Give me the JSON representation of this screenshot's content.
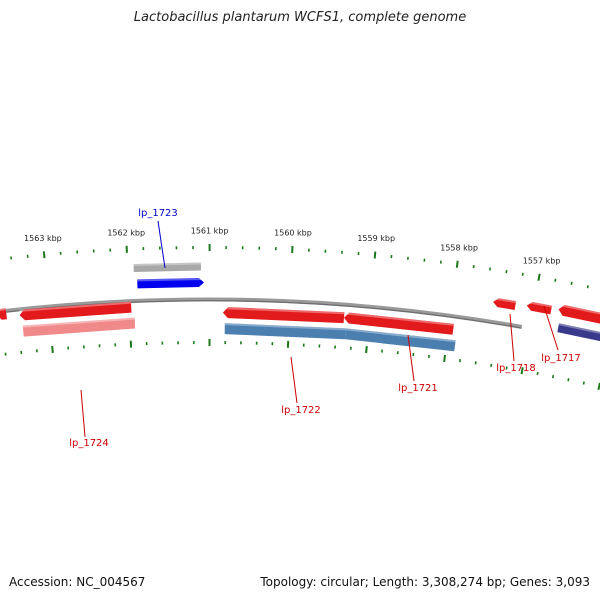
{
  "title": "Lactobacillus plantarum WCFS1, complete genome",
  "footer": {
    "accession": "Accession: NC_004567",
    "summary": "Topology: circular; Length: 3,308,274 bp; Genes: 3,093"
  },
  "scale": {
    "tick_color": "#1a7a1a",
    "labels": [
      {
        "kbp": 1557,
        "text": "1557 kbp"
      },
      {
        "kbp": 1558,
        "text": "1558 kbp"
      },
      {
        "kbp": 1559,
        "text": "1559 kbp"
      },
      {
        "kbp": 1560,
        "text": "1560 kbp"
      },
      {
        "kbp": 1561,
        "text": "1561 kbp"
      },
      {
        "kbp": 1562,
        "text": "1562 kbp"
      },
      {
        "kbp": 1563,
        "text": "1563 kbp"
      }
    ]
  },
  "colors": {
    "backbone": "#8a8a8a",
    "gene_forward": "#e31a1c",
    "gene_forward_label": "#cc0000",
    "gene_highlight": "#0000ee",
    "gene_highlight_label": "#0000cc",
    "cds_pink": "#f08a8a",
    "cds_steel": "#4a7fb0",
    "cds_gray": "#a8a8a8",
    "cds_navy": "#3a3a8c"
  },
  "gene_labels": [
    {
      "name": "lp_1723",
      "color": "highlight"
    },
    {
      "name": "lp_1724",
      "color": "forward"
    },
    {
      "name": "lp_1722",
      "color": "forward"
    },
    {
      "name": "lp_1721",
      "color": "forward"
    },
    {
      "name": "lp_1718",
      "color": "forward"
    },
    {
      "name": "lp_1717",
      "color": "forward"
    }
  ]
}
